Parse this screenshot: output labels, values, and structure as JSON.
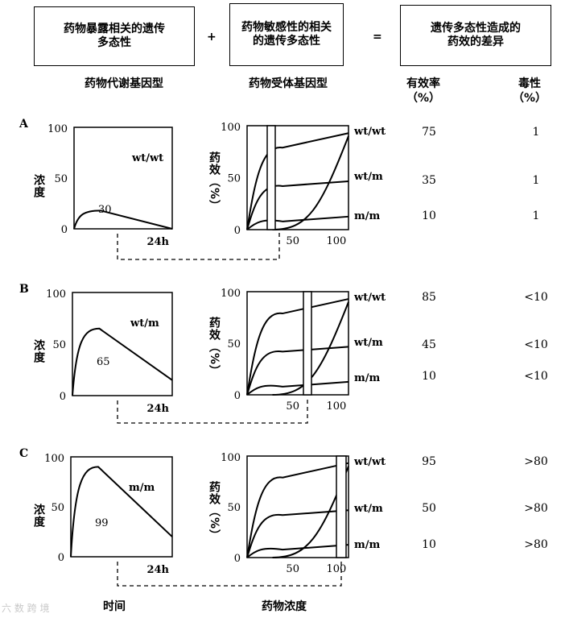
{
  "header": {
    "box1": "药物暴露相关的遗传\n多态性",
    "plus": "+",
    "box2": "药物敏感性的相关\n的遗传多态性",
    "equals": "=",
    "box3": "遗传多态性造成的\n药效的差异",
    "sub1": "药物代谢基因型",
    "sub2": "药物受体基因型",
    "efficacy": "有效率\n（%）",
    "toxicity": "毒性\n（%）"
  },
  "axis_labels": {
    "concentration": "浓度",
    "effect": "药效（%）",
    "time": "时间",
    "drug_conc": "药物浓度"
  },
  "rows": [
    {
      "letter": "A",
      "pk": {
        "genotype": "wt/wt",
        "auc": "30",
        "peak": 18,
        "peak_t": 0.27,
        "ymax": "100",
        "ymid": "50",
        "y0": "0",
        "xlabel": "24h"
      },
      "pd": {
        "y100": "100",
        "y50": "50",
        "y0": "0",
        "x50": "50",
        "x100": "100"
      },
      "genotypes": [
        "wt/wt",
        "wt/m",
        "m/m"
      ],
      "efficacy": [
        "75",
        "35",
        "10"
      ],
      "toxicity": [
        "1",
        "1",
        "1"
      ]
    },
    {
      "letter": "B",
      "pk": {
        "genotype": "wt/m",
        "auc": "65",
        "peak": 65,
        "peak_t": 0.27,
        "ymax": "100",
        "ymid": "50",
        "y0": "0",
        "xlabel": "24h"
      },
      "pd": {
        "y100": "100",
        "y50": "50",
        "y0": "0",
        "x50": "50",
        "x100": "100"
      },
      "genotypes": [
        "wt/wt",
        "wt/m",
        "m/m"
      ],
      "efficacy": [
        "85",
        "45",
        "10"
      ],
      "toxicity": [
        "<10",
        "<10",
        "<10"
      ]
    },
    {
      "letter": "C",
      "pk": {
        "genotype": "m/m",
        "auc": "99",
        "peak": 90,
        "peak_t": 0.27,
        "ymax": "100",
        "ymid": "50",
        "y0": "0",
        "xlabel": "24h"
      },
      "pd": {
        "y100": "100",
        "y50": "50",
        "y0": "0",
        "x50": "50",
        "x100": "100"
      },
      "genotypes": [
        "wt/wt",
        "wt/m",
        "m/m"
      ],
      "efficacy": [
        "95",
        "50",
        "10"
      ],
      "toxicity": [
        ">80",
        ">80",
        ">80"
      ]
    }
  ],
  "watermark": "六 数 跨 境"
}
